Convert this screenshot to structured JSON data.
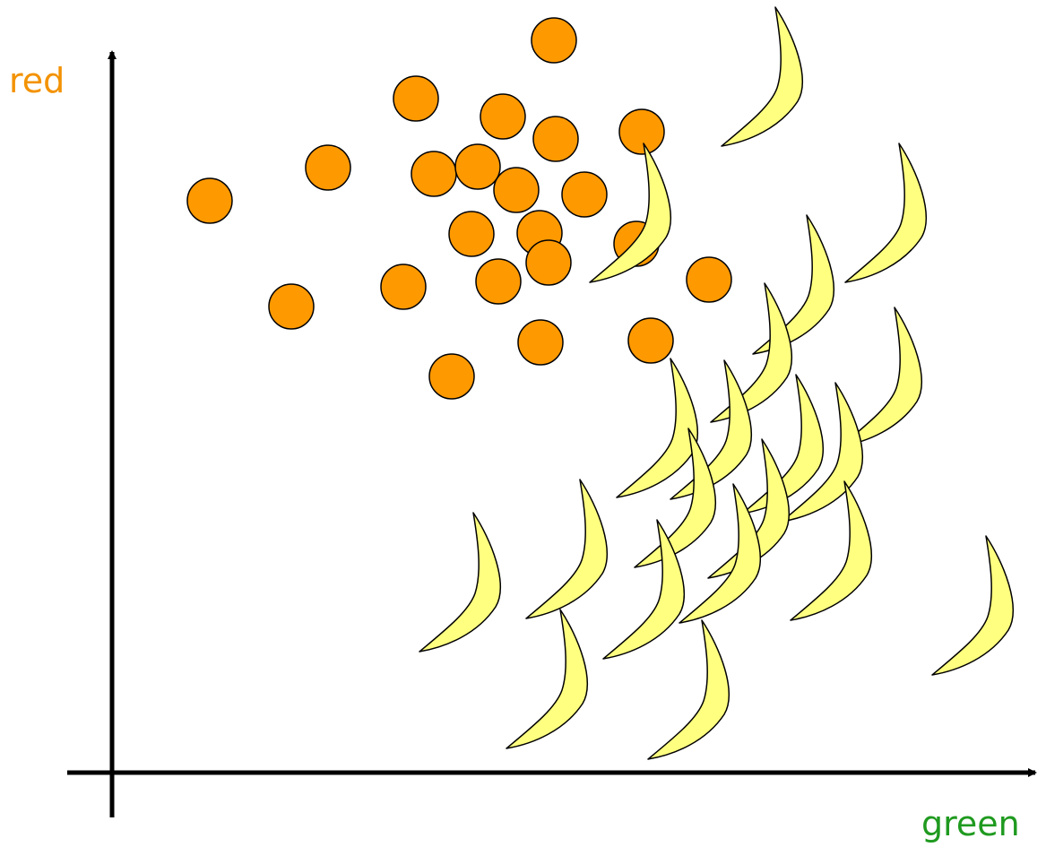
{
  "axes": {
    "y_label": "red",
    "x_label": "green"
  }
}
